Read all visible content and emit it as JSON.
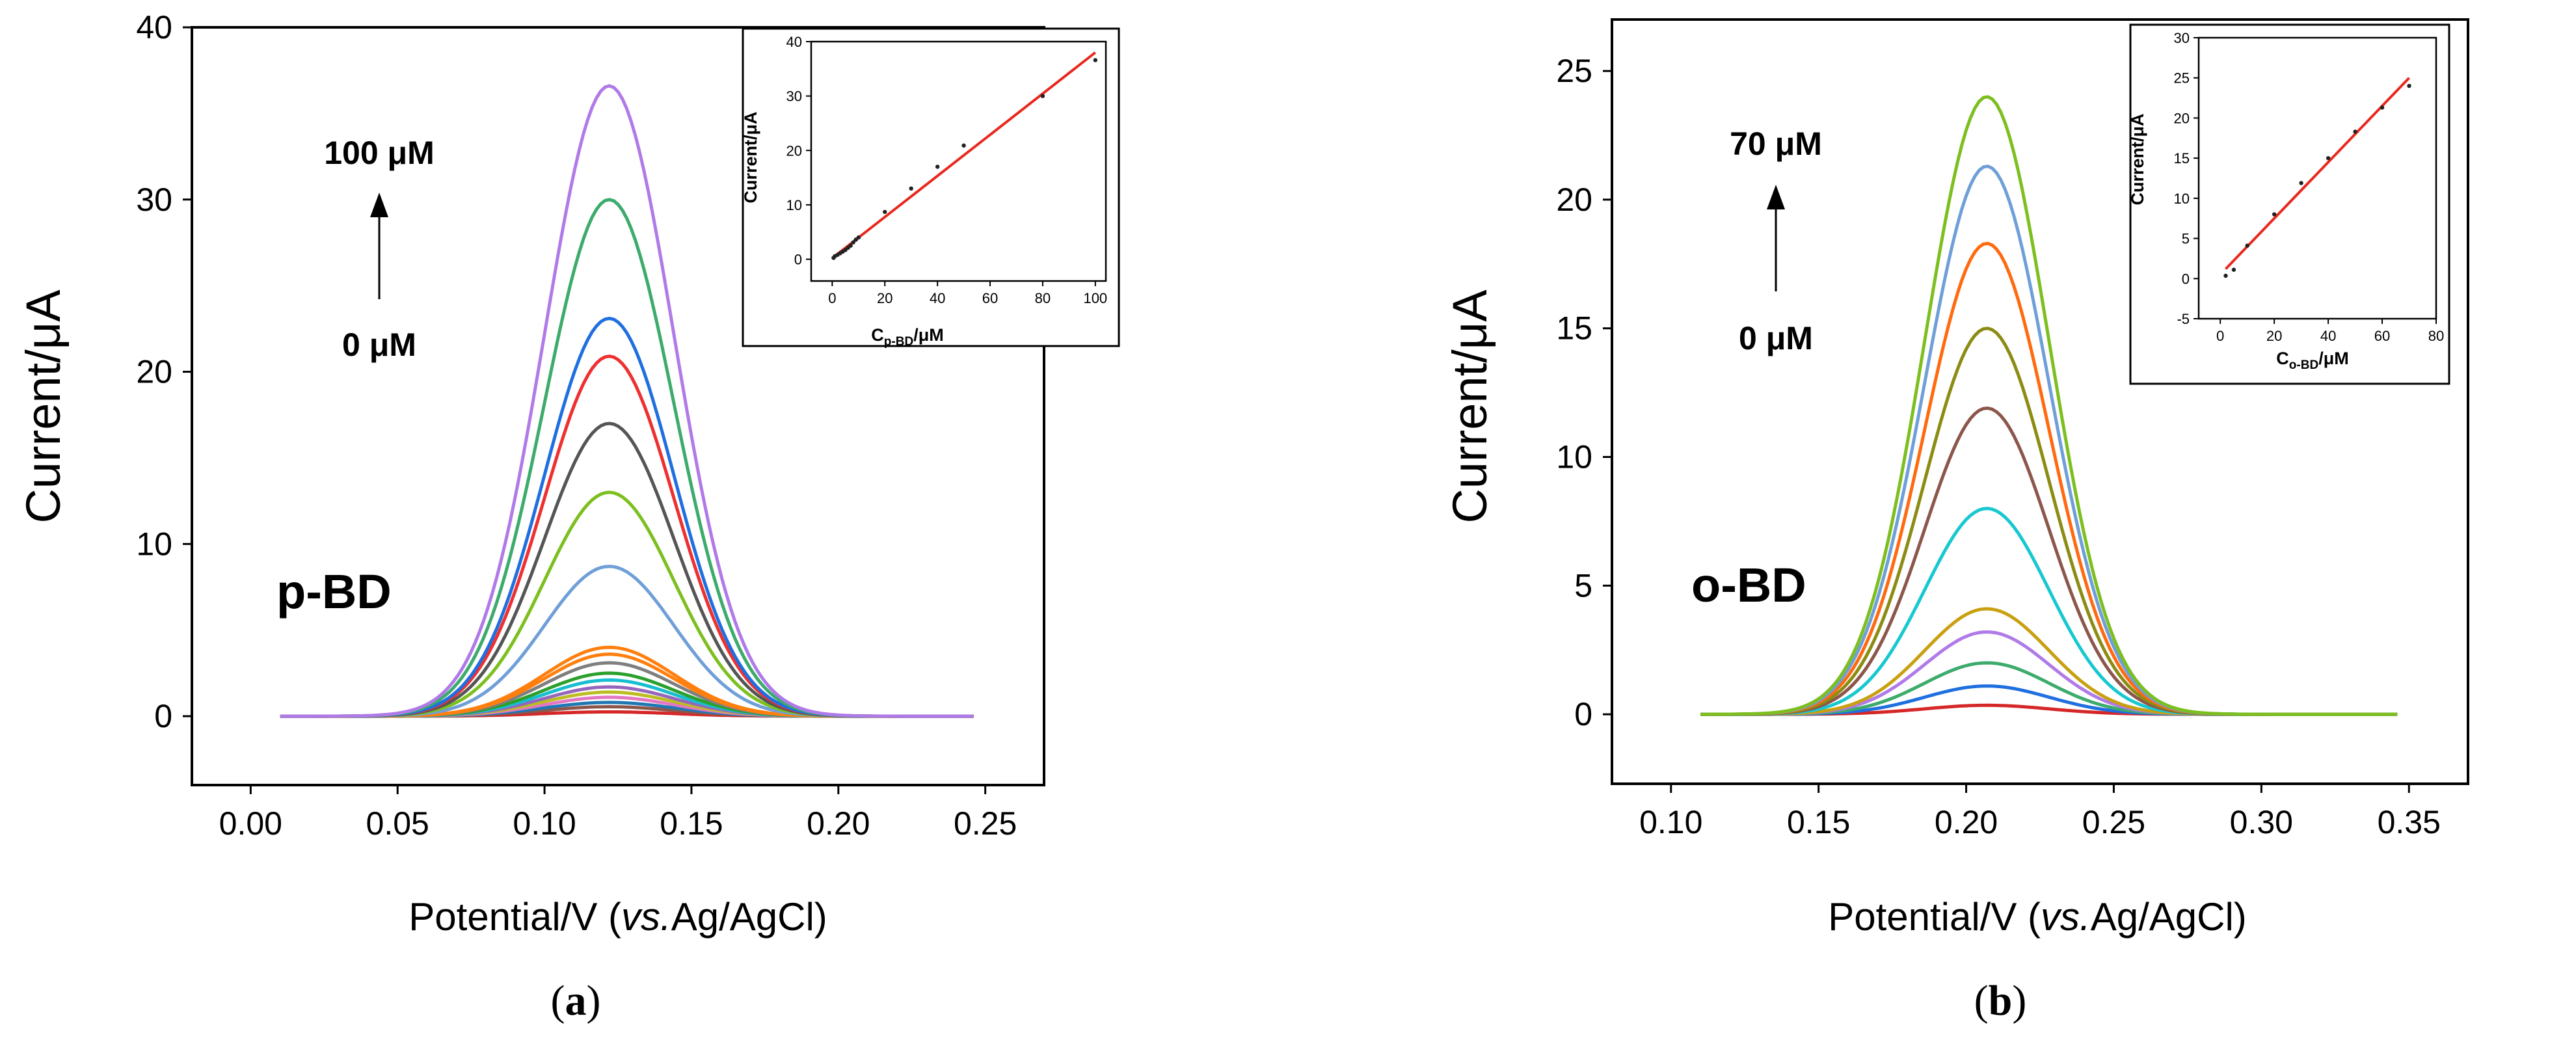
{
  "chart_data": [
    {
      "panel": "(a)",
      "panel_letter": "a",
      "type": "line",
      "compound_label": "p-BD",
      "xlabel_main": "Potential/V (",
      "xlabel_italic": "vs.",
      "xlabel_tail": "Ag/AgCl)",
      "ylabel": "Current/μA",
      "xlim": [
        -0.02,
        0.27
      ],
      "ylim": [
        -4,
        40
      ],
      "xticks": [
        0.0,
        0.05,
        0.1,
        0.15,
        0.2,
        0.25
      ],
      "xtick_labels": [
        "0.00",
        "0.05",
        "0.10",
        "0.15",
        "0.20",
        "0.25"
      ],
      "yticks": [
        0,
        10,
        20,
        30,
        40
      ],
      "ytick_labels": [
        "0",
        "10",
        "20",
        "30",
        "40"
      ],
      "arrow_top_label": "100 μM",
      "arrow_bottom_label": "0 μM",
      "peak_center": 0.122,
      "peak_sigma": 0.022,
      "x_start": 0.01,
      "x_end": 0.246,
      "series": [
        {
          "name": "c1",
          "peak": 0.25,
          "color": "#d62728"
        },
        {
          "name": "c2",
          "peak": 0.55,
          "color": "#8c564b"
        },
        {
          "name": "c3",
          "peak": 0.8,
          "color": "#1f77b4"
        },
        {
          "name": "c4",
          "peak": 1.1,
          "color": "#e377c2"
        },
        {
          "name": "c5",
          "peak": 1.4,
          "color": "#bcbd22"
        },
        {
          "name": "c6",
          "peak": 1.7,
          "color": "#9467bd"
        },
        {
          "name": "c7",
          "peak": 2.1,
          "color": "#17becf"
        },
        {
          "name": "c8",
          "peak": 2.5,
          "color": "#2ca02c"
        },
        {
          "name": "c9",
          "peak": 3.1,
          "color": "#7f7f7f"
        },
        {
          "name": "c10",
          "peak": 3.6,
          "color": "#ff7f0e"
        },
        {
          "name": "c11",
          "peak": 4.0,
          "color": "#ff7f0e"
        },
        {
          "name": "c12",
          "peak": 8.7,
          "color": "#6f9fd8"
        },
        {
          "name": "c13",
          "peak": 13.0,
          "color": "#7cbf1f"
        },
        {
          "name": "c14",
          "peak": 17.0,
          "color": "#555555"
        },
        {
          "name": "c15",
          "peak": 20.9,
          "color": "#ee3030"
        },
        {
          "name": "c16",
          "peak": 23.1,
          "color": "#1f6fe0"
        },
        {
          "name": "c17",
          "peak": 30.0,
          "color": "#3cab6c"
        },
        {
          "name": "c18",
          "peak": 36.6,
          "color": "#b07ae8"
        }
      ],
      "inset": {
        "type": "scatter",
        "xlabel_main": "C",
        "xlabel_sub": "p-BD",
        "xlabel_tail": "/μM",
        "ylabel": "Current/μA",
        "xlim": [
          -8,
          104
        ],
        "ylim": [
          -4,
          40
        ],
        "xticks": [
          0,
          20,
          40,
          60,
          80,
          100
        ],
        "xtick_labels": [
          "0",
          "20",
          "40",
          "60",
          "80",
          "100"
        ],
        "yticks": [
          0,
          10,
          20,
          30,
          40
        ],
        "ytick_labels": [
          "0",
          "10",
          "20",
          "30",
          "40"
        ],
        "points_x": [
          0.5,
          1,
          2,
          3,
          4,
          5,
          6,
          7,
          8,
          9,
          10,
          20,
          30,
          40,
          50,
          80,
          100
        ],
        "points_y": [
          0.25,
          0.55,
          0.8,
          1.1,
          1.4,
          1.7,
          2.1,
          2.5,
          3.1,
          3.6,
          4.0,
          8.7,
          13.0,
          17.0,
          20.9,
          30.0,
          36.6
        ],
        "fit_x": [
          0,
          100
        ],
        "fit_y": [
          0.2,
          38.0
        ],
        "fit_color": "#e8281e"
      }
    },
    {
      "panel": "(b)",
      "panel_letter": "b",
      "type": "line",
      "compound_label": "o-BD",
      "xlabel_main": "Potential/V (",
      "xlabel_italic": "vs.",
      "xlabel_tail": "Ag/AgCl)",
      "ylabel": "Current/μA",
      "xlim": [
        0.08,
        0.37
      ],
      "ylim": [
        -2.7,
        27
      ],
      "xticks": [
        0.1,
        0.15,
        0.2,
        0.25,
        0.3,
        0.35
      ],
      "xtick_labels": [
        "0.10",
        "0.15",
        "0.20",
        "0.25",
        "0.30",
        "0.35"
      ],
      "yticks": [
        0,
        5,
        10,
        15,
        20,
        25
      ],
      "ytick_labels": [
        "0",
        "5",
        "10",
        "15",
        "20",
        "25"
      ],
      "arrow_top_label": "70 μM",
      "arrow_bottom_label": "0 μM",
      "peak_center": 0.207,
      "peak_sigma": 0.021,
      "x_start": 0.11,
      "x_end": 0.346,
      "series": [
        {
          "name": "c1",
          "peak": 0.35,
          "color": "#d62728"
        },
        {
          "name": "c2",
          "peak": 1.1,
          "color": "#1f6fe0"
        },
        {
          "name": "c3",
          "peak": 2.0,
          "color": "#3cab6c"
        },
        {
          "name": "c4",
          "peak": 3.2,
          "color": "#b07ae8"
        },
        {
          "name": "c5",
          "peak": 4.1,
          "color": "#c8a010"
        },
        {
          "name": "c6",
          "peak": 8.0,
          "color": "#17c8d0"
        },
        {
          "name": "c7",
          "peak": 11.9,
          "color": "#8c564b"
        },
        {
          "name": "c8",
          "peak": 15.0,
          "color": "#8c8c14"
        },
        {
          "name": "c9",
          "peak": 18.3,
          "color": "#ff6a10"
        },
        {
          "name": "c10",
          "peak": 21.3,
          "color": "#6f9fd8"
        },
        {
          "name": "c11",
          "peak": 24.0,
          "color": "#7cbf1f"
        }
      ],
      "inset": {
        "type": "scatter",
        "xlabel_main": "C",
        "xlabel_sub": "o-BD",
        "xlabel_tail": "/μM",
        "ylabel": "Current/μA",
        "xlim": [
          -8,
          80
        ],
        "ylim": [
          -5,
          30
        ],
        "xticks": [
          0,
          20,
          40,
          60,
          80
        ],
        "xtick_labels": [
          "0",
          "20",
          "40",
          "60",
          "80"
        ],
        "yticks": [
          -5,
          0,
          5,
          10,
          15,
          20,
          25,
          30
        ],
        "ytick_labels": [
          "-5",
          "0",
          "5",
          "10",
          "15",
          "20",
          "25",
          "30"
        ],
        "points_x": [
          2,
          5,
          10,
          20,
          30,
          40,
          50,
          60,
          70
        ],
        "points_y": [
          0.35,
          1.1,
          4.1,
          8.0,
          11.9,
          15.0,
          18.3,
          21.3,
          24.0
        ],
        "fit_x": [
          2,
          70
        ],
        "fit_y": [
          1.2,
          25.0
        ],
        "fit_color": "#e8281e"
      }
    }
  ]
}
